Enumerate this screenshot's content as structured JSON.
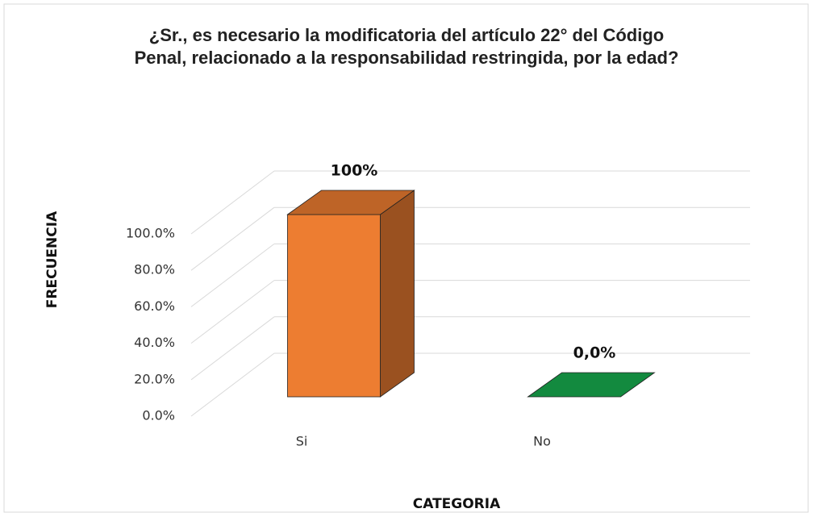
{
  "chart_data": {
    "type": "bar3d",
    "title": "¿Sr., es necesario la modificatoria del artículo 22° del Código Penal, relacionado a la responsabilidad restringida, por la edad?",
    "x_label": "CATEGORIA",
    "y_label": "FRECUENCIA",
    "categories": [
      "Si",
      "No"
    ],
    "values": [
      100,
      0
    ],
    "value_labels": [
      "100%",
      "0,0%"
    ],
    "colors": [
      "#ed7d31",
      "#138a3f"
    ],
    "ylim": [
      0,
      100
    ],
    "yticks": [
      {
        "value": 0,
        "label": "0.0%"
      },
      {
        "value": 20,
        "label": "20.0%"
      },
      {
        "value": 40,
        "label": "40.0%"
      },
      {
        "value": 60,
        "label": "60.0%"
      },
      {
        "value": 80,
        "label": "80.0%"
      },
      {
        "value": 100,
        "label": "100.0%"
      }
    ],
    "grid": true
  }
}
